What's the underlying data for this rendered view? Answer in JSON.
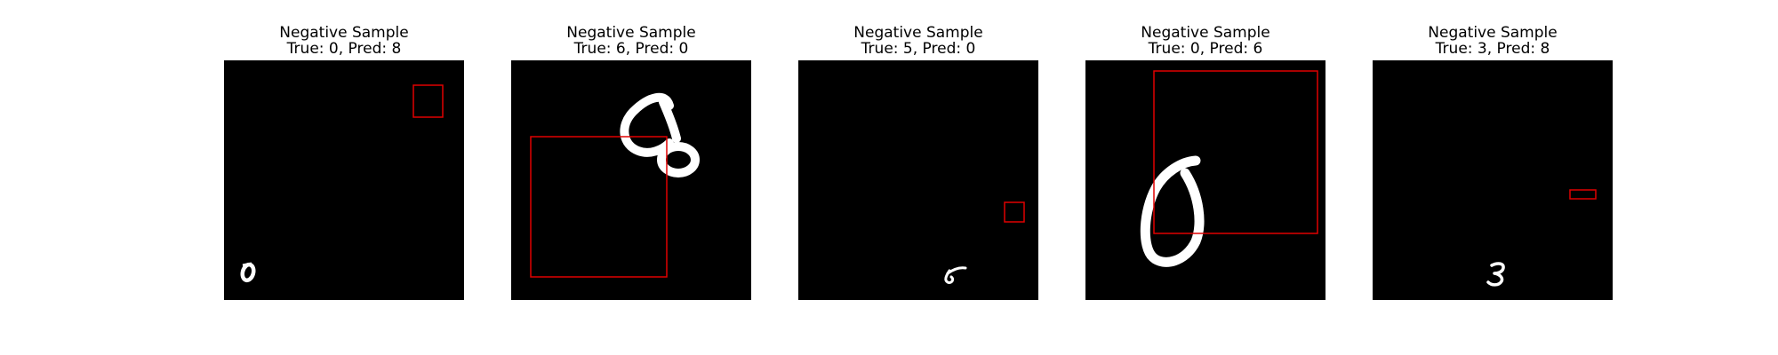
{
  "panels": [
    {
      "heading": "Negative Sample",
      "subtitle": "True: 0, Pred: 8",
      "background_color": "#000000",
      "digit_color": "#ffffff",
      "box_color": "#e00000"
    },
    {
      "heading": "Negative Sample",
      "subtitle": "True: 6, Pred: 0",
      "background_color": "#000000",
      "digit_color": "#ffffff",
      "box_color": "#e00000"
    },
    {
      "heading": "Negative Sample",
      "subtitle": "True: 5, Pred: 0",
      "background_color": "#000000",
      "digit_color": "#ffffff",
      "box_color": "#e00000"
    },
    {
      "heading": "Negative Sample",
      "subtitle": "True: 0, Pred: 6",
      "background_color": "#000000",
      "digit_color": "#ffffff",
      "box_color": "#e00000"
    },
    {
      "heading": "Negative Sample",
      "subtitle": "True: 3, Pred: 8",
      "background_color": "#000000",
      "digit_color": "#ffffff",
      "box_color": "#e00000"
    }
  ]
}
